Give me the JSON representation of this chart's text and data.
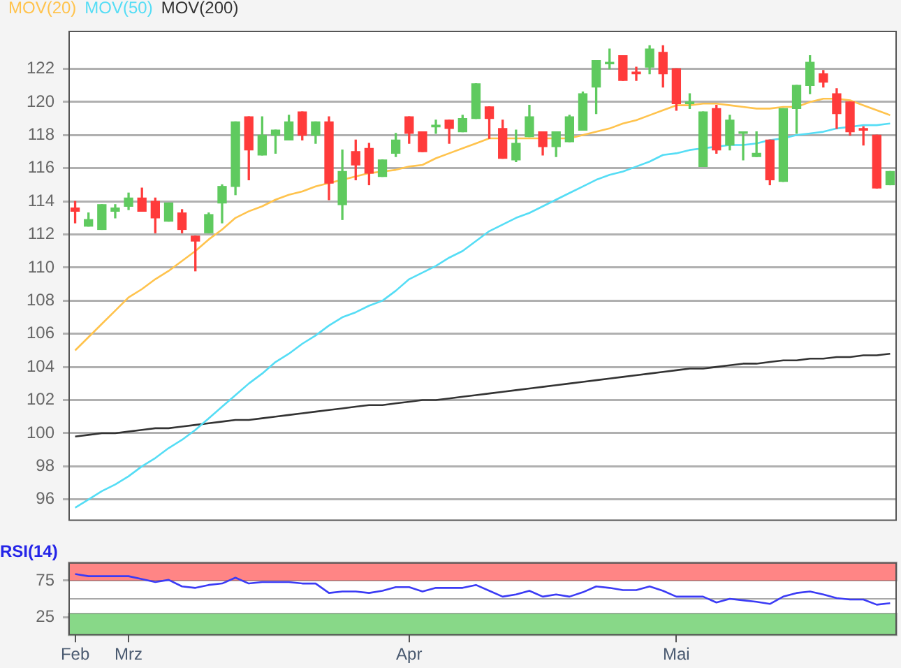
{
  "chart_data": [
    {
      "type": "candlestick",
      "categories": [
        null,
        null,
        null,
        null,
        null,
        null,
        null,
        null,
        null,
        null,
        null,
        null,
        null,
        null,
        null,
        null,
        null,
        null,
        null,
        null,
        null,
        null,
        null,
        null,
        null,
        null,
        null,
        null,
        null,
        null,
        null,
        null,
        null,
        null,
        null,
        null,
        null,
        null,
        null,
        null,
        null,
        null,
        null,
        null,
        null,
        null,
        null,
        null,
        null,
        null,
        null,
        null,
        null,
        null,
        null,
        null,
        null,
        null,
        null,
        null,
        null,
        null
      ],
      "ohlc": [
        [
          113.6,
          114.0,
          112.7,
          113.4
        ],
        [
          112.5,
          113.3,
          112.5,
          112.9
        ],
        [
          112.3,
          113.8,
          112.3,
          113.8
        ],
        [
          113.4,
          113.8,
          113.0,
          113.6
        ],
        [
          113.7,
          114.5,
          113.5,
          114.2
        ],
        [
          114.2,
          114.8,
          113.4,
          113.4
        ],
        [
          114.0,
          114.2,
          112.1,
          113.0
        ],
        [
          112.8,
          113.9,
          112.8,
          113.9
        ],
        [
          113.3,
          113.5,
          112.1,
          112.3
        ],
        [
          111.9,
          111.9,
          109.8,
          111.6
        ],
        [
          112.1,
          113.3,
          112.1,
          113.2
        ],
        [
          113.9,
          115.0,
          112.7,
          114.9
        ],
        [
          114.9,
          118.8,
          114.4,
          118.8
        ],
        [
          119.1,
          119.1,
          115.3,
          117.1
        ],
        [
          116.8,
          119.1,
          116.8,
          118.0
        ],
        [
          118.0,
          118.3,
          116.9,
          118.3
        ],
        [
          117.7,
          119.2,
          117.7,
          118.8
        ],
        [
          119.4,
          119.4,
          117.7,
          118.0
        ],
        [
          118.0,
          118.8,
          117.5,
          118.8
        ],
        [
          118.8,
          119.1,
          114.1,
          115.1
        ],
        [
          113.8,
          117.1,
          112.9,
          115.8
        ],
        [
          117.0,
          117.7,
          115.3,
          116.2
        ],
        [
          117.2,
          117.5,
          115.0,
          115.7
        ],
        [
          115.5,
          116.5,
          115.5,
          116.5
        ],
        [
          116.9,
          118.1,
          116.7,
          117.7
        ],
        [
          119.1,
          119.1,
          117.5,
          118.1
        ],
        [
          118.2,
          118.2,
          117.0,
          117.0
        ],
        [
          118.5,
          118.9,
          118.1,
          118.6
        ],
        [
          118.9,
          118.9,
          117.5,
          118.4
        ],
        [
          118.2,
          119.2,
          118.2,
          119.0
        ],
        [
          119.0,
          121.1,
          119.0,
          121.1
        ],
        [
          119.7,
          119.7,
          117.8,
          119.0
        ],
        [
          118.4,
          118.9,
          116.6,
          116.6
        ],
        [
          116.5,
          118.3,
          116.4,
          117.5
        ],
        [
          117.9,
          119.8,
          117.9,
          119.1
        ],
        [
          118.2,
          118.2,
          116.8,
          117.3
        ],
        [
          117.3,
          118.2,
          116.7,
          118.2
        ],
        [
          117.6,
          119.2,
          117.6,
          119.1
        ],
        [
          118.3,
          120.6,
          118.3,
          120.5
        ],
        [
          120.9,
          122.5,
          119.3,
          122.5
        ],
        [
          122.3,
          123.2,
          122.0,
          122.4
        ],
        [
          122.8,
          122.8,
          121.3,
          121.3
        ],
        [
          121.8,
          122.1,
          121.3,
          121.7
        ],
        [
          122.1,
          123.4,
          121.7,
          123.2
        ],
        [
          123.0,
          123.4,
          120.9,
          121.7
        ],
        [
          122.0,
          122.0,
          119.5,
          119.9
        ],
        [
          119.9,
          120.5,
          119.6,
          120.0
        ],
        [
          116.1,
          119.4,
          116.1,
          119.4
        ],
        [
          119.6,
          119.8,
          116.9,
          117.1
        ],
        [
          117.4,
          119.2,
          117.1,
          118.9
        ],
        [
          118.1,
          118.2,
          116.5,
          118.2
        ],
        [
          116.7,
          118.2,
          116.7,
          116.9
        ],
        [
          117.7,
          117.7,
          115.0,
          115.3
        ],
        [
          115.2,
          119.6,
          115.2,
          119.6
        ],
        [
          119.6,
          121.0,
          118.1,
          121.0
        ],
        [
          121.0,
          122.8,
          120.5,
          122.4
        ],
        [
          121.7,
          121.9,
          120.9,
          121.2
        ],
        [
          120.5,
          120.8,
          118.4,
          119.3
        ],
        [
          120.0,
          120.0,
          118.0,
          118.2
        ],
        [
          118.4,
          118.5,
          117.4,
          118.3
        ],
        [
          118.0,
          118.0,
          114.8,
          114.8
        ],
        [
          115.0,
          115.8,
          115.0,
          115.8
        ]
      ],
      "colors": [
        "#ff3b3b",
        "#5fca5f",
        "#5fca5f",
        "#5fca5f",
        "#5fca5f",
        "#ff3b3b",
        "#ff3b3b",
        "#5fca5f",
        "#ff3b3b",
        "#ff3b3b",
        "#5fca5f",
        "#5fca5f",
        "#5fca5f",
        "#ff3b3b",
        "#5fca5f",
        "#5fca5f",
        "#5fca5f",
        "#ff3b3b",
        "#5fca5f",
        "#ff3b3b",
        "#5fca5f",
        "#ff3b3b",
        "#ff3b3b",
        "#5fca5f",
        "#5fca5f",
        "#ff3b3b",
        "#ff3b3b",
        "#5fca5f",
        "#ff3b3b",
        "#5fca5f",
        "#5fca5f",
        "#ff3b3b",
        "#ff3b3b",
        "#5fca5f",
        "#5fca5f",
        "#ff3b3b",
        "#5fca5f",
        "#5fca5f",
        "#5fca5f",
        "#5fca5f",
        "#5fca5f",
        "#ff3b3b",
        "#ff3b3b",
        "#5fca5f",
        "#ff3b3b",
        "#ff3b3b",
        "#5fca5f",
        "#5fca5f",
        "#ff3b3b",
        "#5fca5f",
        "#5fca5f",
        "#5fca5f",
        "#ff3b3b",
        "#5fca5f",
        "#5fca5f",
        "#5fca5f",
        "#ff3b3b",
        "#ff3b3b",
        "#ff3b3b",
        "#ff3b3b",
        "#ff3b3b",
        "#5fca5f"
      ],
      "series": [
        {
          "type": "line",
          "name": "MOV(20)",
          "color": "#ffc34d",
          "values": [
            105.0,
            105.8,
            106.6,
            107.4,
            108.2,
            108.7,
            109.3,
            109.8,
            110.4,
            111.0,
            111.7,
            112.3,
            113.0,
            113.4,
            113.7,
            114.1,
            114.4,
            114.6,
            114.9,
            115.1,
            115.3,
            115.5,
            115.7,
            115.8,
            115.9,
            116.1,
            116.2,
            116.6,
            116.9,
            117.2,
            117.5,
            117.8,
            117.8,
            117.8,
            117.8,
            117.8,
            117.8,
            117.8,
            118.0,
            118.2,
            118.4,
            118.7,
            118.9,
            119.2,
            119.5,
            119.8,
            119.8,
            119.9,
            119.9,
            119.8,
            119.7,
            119.6,
            119.6,
            119.7,
            119.7,
            120.0,
            120.2,
            120.2,
            120.1,
            119.8,
            119.5,
            119.2
          ]
        },
        {
          "type": "line",
          "name": "MOV(50)",
          "color": "#55ddf5",
          "values": [
            95.5,
            96.0,
            96.5,
            96.9,
            97.4,
            98.0,
            98.5,
            99.1,
            99.6,
            100.2,
            100.9,
            101.6,
            102.3,
            103.0,
            103.6,
            104.3,
            104.8,
            105.4,
            105.9,
            106.5,
            107.0,
            107.3,
            107.7,
            108.0,
            108.6,
            109.3,
            109.7,
            110.1,
            110.6,
            111.0,
            111.6,
            112.2,
            112.6,
            113.0,
            113.3,
            113.7,
            114.1,
            114.5,
            114.9,
            115.3,
            115.6,
            115.8,
            116.1,
            116.4,
            116.8,
            116.9,
            117.1,
            117.2,
            117.3,
            117.4,
            117.4,
            117.5,
            117.7,
            117.8,
            118.0,
            118.1,
            118.2,
            118.4,
            118.5,
            118.6,
            118.6,
            118.7
          ]
        },
        {
          "type": "line",
          "name": "MOV(200)",
          "color": "#333333",
          "values": [
            99.8,
            99.9,
            100.0,
            100.0,
            100.1,
            100.2,
            100.3,
            100.3,
            100.4,
            100.5,
            100.6,
            100.7,
            100.8,
            100.8,
            100.9,
            101.0,
            101.1,
            101.2,
            101.3,
            101.4,
            101.5,
            101.6,
            101.7,
            101.7,
            101.8,
            101.9,
            102.0,
            102.0,
            102.1,
            102.2,
            102.3,
            102.4,
            102.5,
            102.6,
            102.7,
            102.8,
            102.9,
            103.0,
            103.1,
            103.2,
            103.3,
            103.4,
            103.5,
            103.6,
            103.7,
            103.8,
            103.9,
            103.9,
            104.0,
            104.1,
            104.2,
            104.2,
            104.3,
            104.4,
            104.4,
            104.5,
            104.5,
            104.6,
            104.6,
            104.7,
            104.7,
            104.8
          ]
        }
      ],
      "ylim": [
        94.7,
        124.3
      ],
      "yticks": [
        96,
        98,
        100,
        102,
        104,
        106,
        108,
        110,
        112,
        114,
        116,
        118,
        120,
        122
      ],
      "grid": "y",
      "legend": "top left",
      "tick_labels": "y"
    },
    {
      "type": "line",
      "title": "RSI(14)",
      "categories": [
        "Feb",
        null,
        null,
        null,
        "Mrz",
        null,
        null,
        null,
        null,
        null,
        null,
        null,
        null,
        null,
        null,
        null,
        null,
        null,
        null,
        null,
        null,
        null,
        null,
        null,
        null,
        "Apr",
        null,
        null,
        null,
        null,
        null,
        null,
        null,
        null,
        null,
        null,
        null,
        null,
        null,
        null,
        null,
        null,
        null,
        null,
        null,
        "Mai",
        null,
        null,
        null,
        null,
        null,
        null,
        null,
        null,
        null,
        null,
        null,
        null,
        null,
        null,
        null,
        null
      ],
      "series": [
        {
          "color": "#3b3bf5",
          "values": [
            84,
            81,
            81,
            81,
            81,
            77,
            73,
            76,
            67,
            65,
            69,
            71,
            79,
            71,
            73,
            73,
            73,
            71,
            71,
            58,
            60,
            60,
            58,
            61,
            66,
            66,
            60,
            65,
            65,
            65,
            69,
            61,
            53,
            56,
            61,
            53,
            56,
            53,
            59,
            67,
            65,
            62,
            62,
            67,
            61,
            53,
            53,
            53,
            45,
            50,
            48,
            46,
            43,
            53,
            58,
            60,
            56,
            51,
            49,
            49,
            42,
            44
          ]
        }
      ],
      "ylim": [
        0,
        100
      ],
      "yticks": [
        25,
        75
      ],
      "bands": [
        {
          "axis": "y",
          "from": 75,
          "to": 100,
          "color": "#ff8585"
        },
        {
          "axis": "y",
          "from": 0,
          "to": 30,
          "color": "#88d888"
        }
      ],
      "ref_lines": [
        {
          "axis": "y",
          "value": 50,
          "color": "#a8a8a8"
        }
      ]
    }
  ]
}
